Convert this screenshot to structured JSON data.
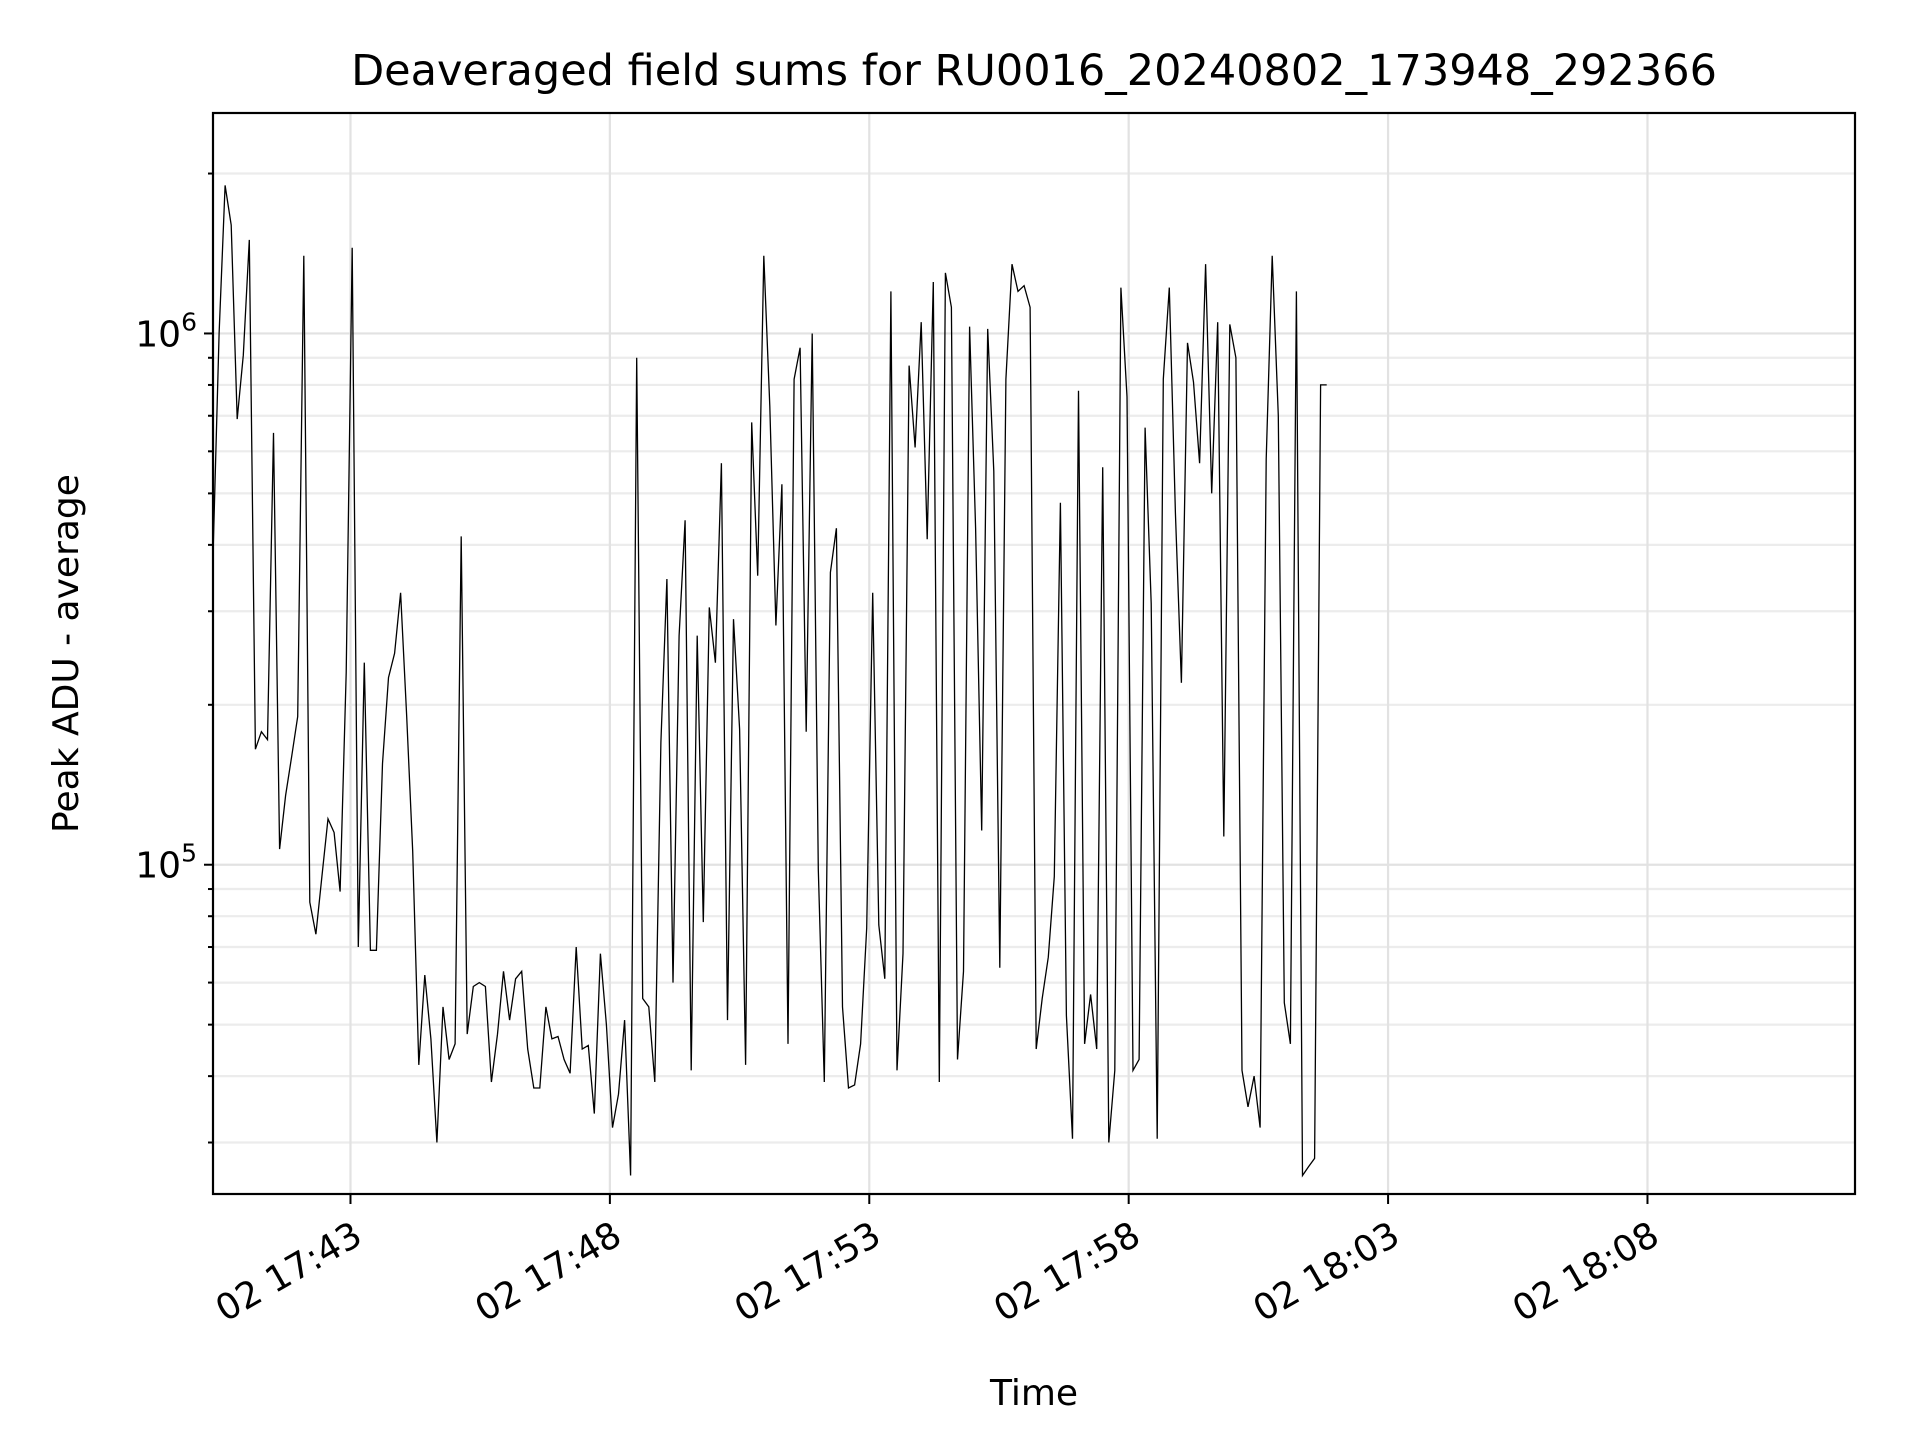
{
  "chart_data": {
    "type": "line",
    "title": "Deaveraged field sums for RU0016_20240802_173948_292366",
    "xlabel": "Time",
    "ylabel": "Peak ADU - average",
    "yscale": "log",
    "grid": "major and minor",
    "x_start": "2024-08-02 17:40:21",
    "x_step_seconds": 7,
    "xlim": [
      "2024-08-02 17:40:21",
      "2024-08-02 18:12:00"
    ],
    "ylim": [
      24000,
      2600000
    ],
    "x_ticks": [
      "2024-08-02 17:43",
      "2024-08-02 17:48",
      "2024-08-02 17:53",
      "2024-08-02 17:58",
      "2024-08-02 18:03",
      "2024-08-02 18:08"
    ],
    "x_tick_labels": [
      "02 17:43",
      "02 17:48",
      "02 17:53",
      "02 17:58",
      "02 18:03",
      "02 18:08"
    ],
    "y_ticks": [
      100000,
      1000000
    ],
    "y_tick_labels": [
      {
        "base": "10",
        "exp": "5"
      },
      {
        "base": "10",
        "exp": "6"
      }
    ],
    "series": [
      {
        "color": "#000000",
        "values": [
          380000,
          1000000,
          1900000,
          1600000,
          690000,
          910000,
          1500000,
          165000,
          178000,
          172000,
          650000,
          107000,
          135000,
          160000,
          190000,
          1400000,
          85000,
          74000,
          95000,
          122000,
          115000,
          89000,
          230000,
          1450000,
          70000,
          240000,
          69000,
          69000,
          155000,
          225000,
          250000,
          325000,
          190000,
          106000,
          42000,
          62000,
          47000,
          30000,
          54000,
          43000,
          46000,
          415000,
          48000,
          59000,
          60000,
          59000,
          39000,
          48000,
          63000,
          51000,
          61000,
          63000,
          45000,
          38000,
          38000,
          54000,
          47000,
          47500,
          43000,
          40500,
          70000,
          45000,
          45700,
          34000,
          68000,
          50000,
          32000,
          37000,
          51000,
          26000,
          900000,
          56000,
          54000,
          39000,
          170000,
          345000,
          60000,
          270000,
          445000,
          41000,
          270000,
          78000,
          305000,
          240000,
          570000,
          51000,
          290000,
          180000,
          42000,
          680000,
          350000,
          1400000,
          730000,
          282000,
          520000,
          46000,
          820000,
          940000,
          178000,
          1000000,
          98000,
          39000,
          355000,
          430000,
          54000,
          38000,
          38500,
          46000,
          76000,
          325000,
          77000,
          61000,
          1200000,
          41000,
          68000,
          870000,
          610000,
          1050000,
          410000,
          1250000,
          39000,
          1300000,
          1120000,
          43000,
          63000,
          1030000,
          430000,
          116000,
          1020000,
          550000,
          64000,
          820000,
          1350000,
          1200000,
          1230000,
          1120000,
          45000,
          56000,
          67000,
          95000,
          480000,
          52000,
          30500,
          780000,
          46000,
          57000,
          45000,
          560000,
          30000,
          41000,
          1220000,
          760000,
          41000,
          43000,
          665000,
          310000,
          30500,
          820000,
          1220000,
          460000,
          220000,
          960000,
          810000,
          570000,
          1350000,
          500000,
          1050000,
          113000,
          1040000,
          900000,
          41000,
          35000,
          40000,
          32000,
          580000,
          1400000,
          700000,
          55000,
          46000,
          1200000,
          26000,
          27000,
          28000,
          800000,
          800000
        ]
      }
    ]
  }
}
